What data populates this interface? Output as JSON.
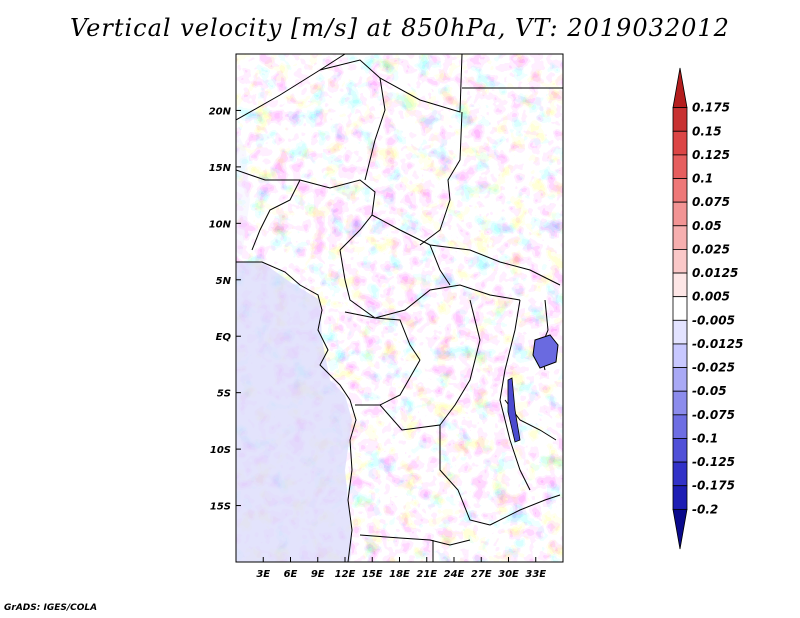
{
  "title": "Vertical velocity [m/s] at 850hPa, VT: 2019032012",
  "credit": "GrADS: IGES/COLA",
  "map": {
    "lon_range": [
      0,
      36
    ],
    "lat_range": [
      -20,
      25
    ],
    "x_ticks": [
      {
        "value": 3,
        "label": "3E"
      },
      {
        "value": 6,
        "label": "6E"
      },
      {
        "value": 9,
        "label": "9E"
      },
      {
        "value": 12,
        "label": "12E"
      },
      {
        "value": 15,
        "label": "15E"
      },
      {
        "value": 18,
        "label": "18E"
      },
      {
        "value": 21,
        "label": "21E"
      },
      {
        "value": 24,
        "label": "24E"
      },
      {
        "value": 27,
        "label": "27E"
      },
      {
        "value": 30,
        "label": "30E"
      },
      {
        "value": 33,
        "label": "33E"
      }
    ],
    "y_ticks": [
      {
        "value": 20,
        "label": "20N"
      },
      {
        "value": 15,
        "label": "15N"
      },
      {
        "value": 10,
        "label": "10N"
      },
      {
        "value": 5,
        "label": "5N"
      },
      {
        "value": 0,
        "label": "EQ"
      },
      {
        "value": -5,
        "label": "5S"
      },
      {
        "value": -10,
        "label": "10S"
      },
      {
        "value": -15,
        "label": "15S"
      }
    ]
  },
  "colorbar": {
    "levels": [
      "0.175",
      "0.15",
      "0.125",
      "0.1",
      "0.075",
      "0.05",
      "0.025",
      "0.0125",
      "0.005",
      "-0.005",
      "-0.0125",
      "-0.025",
      "-0.05",
      "-0.075",
      "-0.1",
      "-0.125",
      "-0.175",
      "-0.2"
    ],
    "colors": [
      "#b41e1e",
      "#c83232",
      "#dc4646",
      "#e65f5f",
      "#ee7878",
      "#f29494",
      "#f6afaf",
      "#fac8c8",
      "#fde6e6",
      "#ffffff",
      "#e3e3ff",
      "#c8c8ff",
      "#a9a9f5",
      "#8c8cec",
      "#6e6ee3",
      "#5050d8",
      "#3232c8",
      "#1e1eb4",
      "#0a0a8c"
    ]
  }
}
